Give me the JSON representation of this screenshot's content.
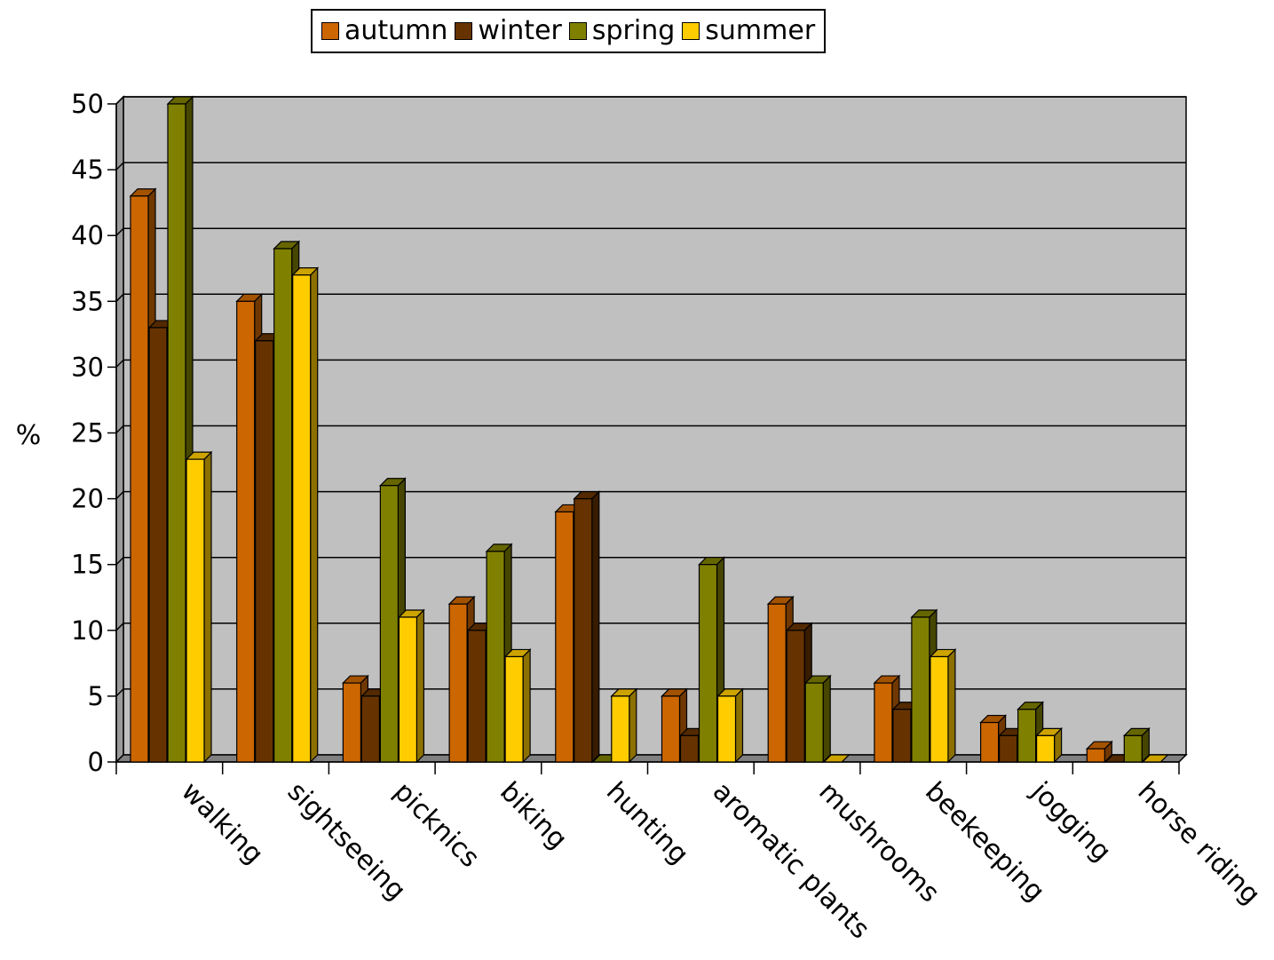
{
  "chart_data": {
    "type": "bar",
    "title": "",
    "xlabel": "",
    "ylabel": "%",
    "ylim": [
      0,
      50
    ],
    "yticks": [
      0,
      5,
      10,
      15,
      20,
      25,
      30,
      35,
      40,
      45,
      50
    ],
    "grid": true,
    "legend_position": "top",
    "categories": [
      "walking",
      "sightseeing",
      "picknics",
      "biking",
      "hunting",
      "aromatic plants",
      "mushrooms",
      "beekeeping",
      "jogging",
      "horse riding"
    ],
    "series": [
      {
        "name": "autumn",
        "color": "#CC6600",
        "values": [
          43,
          35,
          6,
          12,
          19,
          5,
          12,
          6,
          3,
          1
        ]
      },
      {
        "name": "winter",
        "color": "#663300",
        "values": [
          33,
          32,
          5,
          10,
          20,
          2,
          10,
          4,
          2,
          0
        ]
      },
      {
        "name": "spring",
        "color": "#808000",
        "values": [
          50,
          39,
          21,
          16,
          0,
          15,
          6,
          11,
          4,
          2
        ]
      },
      {
        "name": "summer",
        "color": "#FFCC00",
        "values": [
          23,
          37,
          11,
          8,
          5,
          5,
          0,
          8,
          2,
          0
        ]
      }
    ],
    "plot_background": "#C0C0C0"
  }
}
